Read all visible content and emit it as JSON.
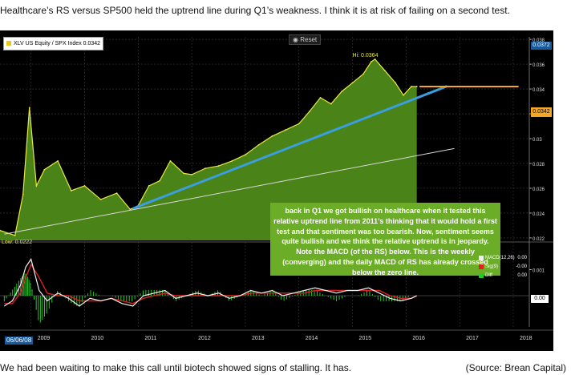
{
  "captions": {
    "top": "Healthcare’s RS versus SP500 held the uptrend line during Q1’s weakness. I think it is at risk of failing on a second test.",
    "bottom": "We had been waiting to make this call until biotech showed signs of stalling. It has.",
    "source": "(Source: Brean Capital)"
  },
  "toolbar": {
    "reset_label": "Reset"
  },
  "colors": {
    "area_fill": "#4e8a18",
    "rs_line": "#e8e84a",
    "trendline": "#3a9ee0",
    "secondary_line": "#d8d8d8",
    "annotation_bg": "#6cad28",
    "price_tag": "#f5a623"
  },
  "chart_data": [
    {
      "type": "area",
      "legend": {
        "label": "XLV US Equity / SPX Index",
        "value": "0.0342",
        "position": "top-left"
      },
      "x": [
        2008.42,
        2008.7,
        2008.85,
        2008.97,
        2009.1,
        2009.25,
        2009.5,
        2009.75,
        2010.0,
        2010.3,
        2010.6,
        2010.85,
        2011.0,
        2011.2,
        2011.4,
        2011.6,
        2011.85,
        2012.0,
        2012.25,
        2012.5,
        2012.75,
        2013.0,
        2013.25,
        2013.5,
        2013.75,
        2014.0,
        2014.2,
        2014.4,
        2014.6,
        2014.8,
        2015.0,
        2015.2,
        2015.35,
        2015.42,
        2015.6,
        2015.8,
        2015.95,
        2016.1,
        2016.2
      ],
      "y": [
        0.0226,
        0.0222,
        0.0255,
        0.0325,
        0.0262,
        0.0275,
        0.0282,
        0.0258,
        0.0262,
        0.0251,
        0.0256,
        0.0243,
        0.0246,
        0.0262,
        0.0266,
        0.0282,
        0.0272,
        0.0271,
        0.0276,
        0.0278,
        0.0282,
        0.0287,
        0.0295,
        0.0302,
        0.0307,
        0.0312,
        0.0322,
        0.0333,
        0.0328,
        0.0338,
        0.0345,
        0.0352,
        0.0362,
        0.0364,
        0.0355,
        0.0345,
        0.0335,
        0.0342,
        0.0342
      ],
      "ylim": [
        0.0218,
        0.0382
      ],
      "y_ticks": [
        "0.038",
        "0.036",
        "0.034",
        "0.032",
        "0.03",
        "0.028",
        "0.026",
        "0.024",
        "0.022"
      ],
      "x_ticks": [
        "2009",
        "2010",
        "2011",
        "2012",
        "2013",
        "2014",
        "2015",
        "2016",
        "2017",
        "2018"
      ],
      "xlim": [
        2008.42,
        2018.3
      ],
      "start_date_label": "06/06/08",
      "trendline": {
        "x": [
          2010.92,
          2016.75
        ],
        "y": [
          0.0244,
          0.0342
        ]
      },
      "secondary_line": {
        "x": [
          2008.5,
          2016.9
        ],
        "y": [
          0.0223,
          0.0292
        ]
      },
      "current_level": {
        "value": 0.0342,
        "label": "0.0342",
        "x_range": [
          2016.25,
          2018.1
        ]
      },
      "top_tag": "0.0372",
      "annotations": {
        "high": "Hi: 0.0364",
        "low": "Low: 0.0222",
        "note": "back in Q1 we got bullish on healthcare when it tested this relative uptrend line from 2011’s thinking that it would hold a first test and that sentiment was too bearish. Now, sentiment seems quite bullish and we think the relative uptrend is in jeopardy. Note the MACD (of the RS) below. This is the weekly (converging) and the daily MACD of RS has already crossed below the zero line."
      },
      "grid": true
    },
    {
      "type": "line",
      "x": [
        2008.5,
        2008.65,
        2008.8,
        2008.9,
        2009.0,
        2009.15,
        2009.3,
        2009.5,
        2009.7,
        2009.9,
        2010.1,
        2010.3,
        2010.5,
        2010.7,
        2010.9,
        2011.1,
        2011.3,
        2011.5,
        2011.7,
        2011.9,
        2012.1,
        2012.3,
        2012.5,
        2012.7,
        2012.9,
        2013.1,
        2013.3,
        2013.5,
        2013.7,
        2013.9,
        2014.1,
        2014.3,
        2014.5,
        2014.7,
        2014.9,
        2015.1,
        2015.3,
        2015.5,
        2015.7,
        2015.9,
        2016.1,
        2016.2
      ],
      "series": [
        {
          "name": "MACD(12,26)",
          "value": "0.00",
          "color": "#f0f0f0",
          "values": [
            -0.0004,
            -0.0002,
            0.0004,
            0.0011,
            0.0014,
            0.0002,
            -0.0002,
            0.0001,
            -0.0001,
            -0.0004,
            -0.0001,
            -0.0002,
            -0.0001,
            -0.0003,
            -0.0004,
            0.0,
            0.0001,
            0.0002,
            -0.0001,
            0.0,
            0.0001,
            0.0,
            0.0001,
            -0.0001,
            0.0,
            0.0002,
            0.0001,
            0.0002,
            0.0,
            0.0001,
            0.0002,
            0.0003,
            0.0002,
            0.0001,
            0.0002,
            0.0002,
            0.0003,
            0.0001,
            -0.0001,
            -0.0002,
            -0.0001,
            0.0
          ]
        },
        {
          "name": "Sig(9)",
          "value": "-0.00",
          "color": "#e02020",
          "values": [
            -0.0003,
            -0.0003,
            0.0001,
            0.0007,
            0.0012,
            0.0007,
            0.0001,
            0.0,
            0.0,
            -0.0002,
            -0.0002,
            -0.0002,
            -0.0001,
            -0.0002,
            -0.0003,
            -0.0001,
            0.0,
            0.0001,
            0.0,
            0.0,
            0.0,
            0.0,
            0.0,
            0.0,
            0.0,
            0.0001,
            0.0001,
            0.0001,
            0.0001,
            0.0001,
            0.0001,
            0.0002,
            0.0002,
            0.0002,
            0.0002,
            0.0002,
            0.0002,
            0.0002,
            0.0,
            -0.0001,
            -0.0001,
            0.0
          ]
        },
        {
          "name": "Diff",
          "value": "0.00",
          "color": "#22cc22"
        }
      ],
      "ylim": [
        -0.0012,
        0.002
      ],
      "y_ticks": [
        "0.001"
      ],
      "zero_label": "0.00",
      "legend_position": "top-right"
    }
  ]
}
